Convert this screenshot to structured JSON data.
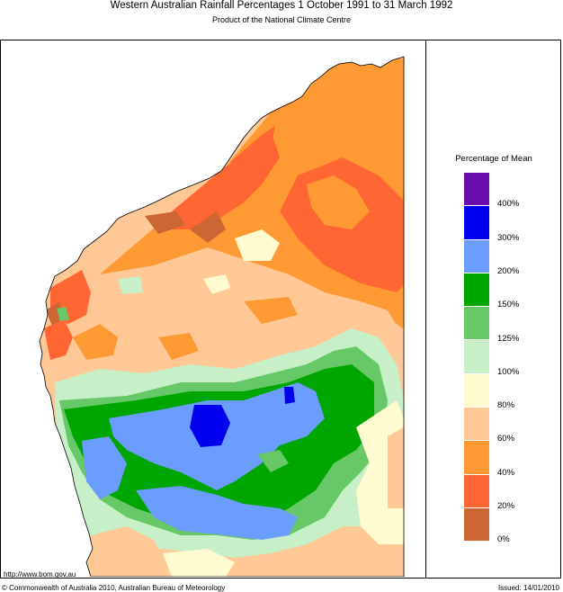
{
  "header": {
    "title": "Western Australian Rainfall Percentages 1 October 1991 to 31 March 1992",
    "subtitle": "Product of the National Climate Centre"
  },
  "legend": {
    "title": "Percentage of Mean",
    "classes": [
      {
        "range": "400%+",
        "color": "#6a0dad"
      },
      {
        "range": "300-400%",
        "color": "#0000ee"
      },
      {
        "range": "200-300%",
        "color": "#6b9cff"
      },
      {
        "range": "150-200%",
        "color": "#00a600"
      },
      {
        "range": "125-150%",
        "color": "#66c866"
      },
      {
        "range": "100-125%",
        "color": "#c8f0c8"
      },
      {
        "range": "80-100%",
        "color": "#fffad0"
      },
      {
        "range": "60-80%",
        "color": "#ffc896"
      },
      {
        "range": "40-60%",
        "color": "#ff9933"
      },
      {
        "range": "20-40%",
        "color": "#ff6633"
      },
      {
        "range": "0-20%",
        "color": "#cc6633"
      }
    ],
    "ticks": [
      "400%",
      "300%",
      "200%",
      "150%",
      "125%",
      "100%",
      "80%",
      "60%",
      "40%",
      "20%",
      "0%"
    ]
  },
  "footer": {
    "url": "http://www.bom.gov.au",
    "copyright": "© Commonwealth of Australia 2010, Australian Bureau of Meteorology",
    "issued": "Issued: 14/01/2010"
  }
}
